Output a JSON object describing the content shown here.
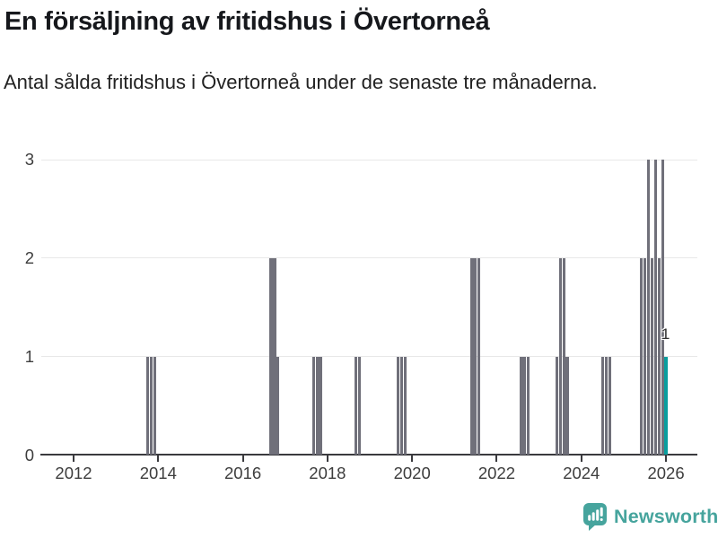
{
  "chart_data": {
    "type": "bar",
    "title": "En försäljning av fritidshus i Övertorneå",
    "subtitle": "Antal sålda fritidshus i Övertorneå under de senaste tre månaderna.",
    "x_tick_labels": [
      "2012",
      "2014",
      "2016",
      "2018",
      "2020",
      "2022",
      "2024",
      "2026"
    ],
    "x_tick_years": [
      2012,
      2014,
      2016,
      2018,
      2020,
      2022,
      2024,
      2026
    ],
    "y_tick_labels": [
      "0",
      "1",
      "2",
      "3"
    ],
    "y_ticks": [
      0,
      1,
      2,
      3
    ],
    "ylim": [
      0,
      3
    ],
    "x_range_months": [
      "2011-04",
      "2026-10"
    ],
    "grid": "horizontal-only",
    "legend": "none",
    "bar_period": "month",
    "series": [
      {
        "month": "2013-10",
        "value": 1
      },
      {
        "month": "2013-11",
        "value": 1
      },
      {
        "month": "2013-12",
        "value": 1
      },
      {
        "month": "2016-09",
        "value": 2
      },
      {
        "month": "2016-10",
        "value": 2
      },
      {
        "month": "2016-11",
        "value": 1
      },
      {
        "month": "2017-09",
        "value": 1
      },
      {
        "month": "2017-10",
        "value": 1
      },
      {
        "month": "2017-11",
        "value": 1
      },
      {
        "month": "2018-09",
        "value": 1
      },
      {
        "month": "2018-10",
        "value": 1
      },
      {
        "month": "2019-09",
        "value": 1
      },
      {
        "month": "2019-10",
        "value": 1
      },
      {
        "month": "2019-11",
        "value": 1
      },
      {
        "month": "2021-06",
        "value": 2
      },
      {
        "month": "2021-07",
        "value": 2
      },
      {
        "month": "2021-08",
        "value": 2
      },
      {
        "month": "2022-08",
        "value": 1
      },
      {
        "month": "2022-09",
        "value": 1
      },
      {
        "month": "2022-10",
        "value": 1
      },
      {
        "month": "2023-06",
        "value": 1
      },
      {
        "month": "2023-07",
        "value": 2
      },
      {
        "month": "2023-08",
        "value": 2
      },
      {
        "month": "2023-09",
        "value": 1
      },
      {
        "month": "2024-07",
        "value": 1
      },
      {
        "month": "2024-08",
        "value": 1
      },
      {
        "month": "2024-09",
        "value": 1
      },
      {
        "month": "2025-06",
        "value": 2
      },
      {
        "month": "2025-07",
        "value": 2
      },
      {
        "month": "2025-08",
        "value": 3
      },
      {
        "month": "2025-09",
        "value": 2
      },
      {
        "month": "2025-10",
        "value": 3
      },
      {
        "month": "2025-11",
        "value": 2
      },
      {
        "month": "2025-12",
        "value": 3
      },
      {
        "month": "2026-01",
        "value": 1,
        "highlight": true,
        "label": "1"
      }
    ],
    "colors": {
      "bar": "#70707A",
      "highlight": "#0A9E9E",
      "gridline": "#E8E8E8",
      "axis": "#3A3A3E",
      "title_text": "#16181C",
      "tick_text": "#3D3D3D"
    }
  },
  "branding": {
    "logo_text": "Newsworthy",
    "logo_color": "#46A49D"
  }
}
